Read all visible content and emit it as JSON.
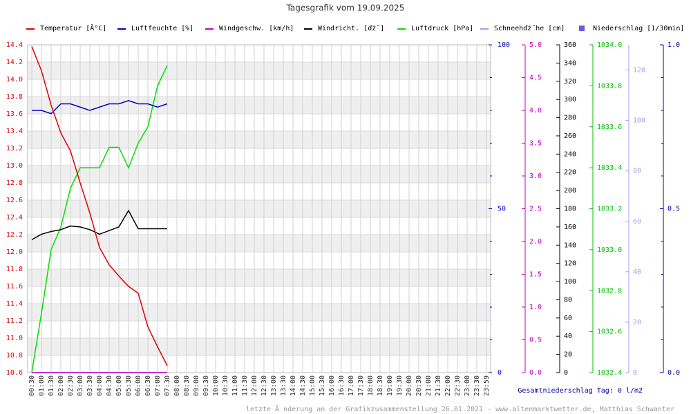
{
  "chart_data": {
    "type": "line",
    "title": "Tagesgrafik vom 19.09.2025",
    "categories": [
      "00:30",
      "01:00",
      "01:30",
      "02:00",
      "02:30",
      "03:00",
      "03:30",
      "04:00",
      "04:30",
      "05:00",
      "05:30",
      "06:00",
      "06:30",
      "07:00",
      "07:30",
      "08:00",
      "08:30",
      "09:00",
      "09:30",
      "10:00",
      "10:30",
      "11:00",
      "11:30",
      "12:00",
      "12:30",
      "13:00",
      "13:30",
      "14:00",
      "14:30",
      "15:00",
      "15:30",
      "16:00",
      "16:30",
      "17:00",
      "17:30",
      "18:00",
      "18:30",
      "19:00",
      "19:30",
      "20:00",
      "20:30",
      "21:00",
      "21:30",
      "22:00",
      "22:30",
      "23:00",
      "23:30",
      "23:59"
    ],
    "grid": true,
    "legend_position": "top",
    "axes": [
      {
        "color": "#e00000",
        "ylim": [
          10.6,
          14.4
        ],
        "yticks": [
          10.6,
          10.8,
          {
            "value": 11,
            "label": "11.0"
          },
          11.2,
          11.4,
          11.6,
          11.8,
          {
            "value": 12,
            "label": "12.0"
          },
          12.2,
          12.4,
          12.6,
          12.8,
          {
            "value": 13,
            "label": "13.0"
          },
          13.2,
          13.4,
          13.6,
          13.8,
          {
            "value": 14,
            "label": "14.0"
          },
          14.2,
          14.4
        ]
      },
      {
        "color": "#0000c0",
        "ylim": [
          0,
          100
        ],
        "yticks": [
          0,
          50,
          100
        ],
        "minor_ticks": [
          10,
          20,
          30,
          40,
          60,
          70,
          80,
          90
        ]
      },
      {
        "color": "#c000c0",
        "ylim": [
          0,
          5
        ],
        "yticks": [
          {
            "value": 0,
            "label": "0.0"
          },
          0.5,
          {
            "value": 1,
            "label": "1.0"
          },
          1.5,
          {
            "value": 2,
            "label": "2.0"
          },
          2.5,
          {
            "value": 3,
            "label": "3.0"
          },
          3.5,
          {
            "value": 4,
            "label": "4.0"
          },
          4.5,
          {
            "value": 5,
            "label": "5.0"
          }
        ]
      },
      {
        "color": "#000000",
        "ylim": [
          0,
          360
        ],
        "yticks": [
          0,
          20,
          40,
          60,
          80,
          100,
          120,
          140,
          160,
          180,
          200,
          220,
          240,
          260,
          280,
          300,
          320,
          340,
          360
        ]
      },
      {
        "color": "#00c000",
        "ylim": [
          1032.4,
          1034
        ],
        "yticks": [
          1032.4,
          1032.6,
          1032.8,
          {
            "value": 1033,
            "label": "1033.0"
          },
          1033.2,
          1033.4,
          1033.6,
          1033.8,
          {
            "value": 1034,
            "label": "1034.0"
          }
        ]
      },
      {
        "color": "#a0a0f0",
        "ylim": [
          0,
          130
        ],
        "yticks": [
          0,
          20,
          40,
          60,
          80,
          100,
          120
        ]
      },
      {
        "color": "#0000a0",
        "ylim": [
          0,
          1
        ],
        "yticks": [
          {
            "value": 0,
            "label": "0.0"
          },
          0.5,
          {
            "value": 1,
            "label": "1.0"
          }
        ],
        "minor_ticks": [
          0.1,
          0.2,
          0.3,
          0.4,
          0.6,
          0.7,
          0.8,
          0.9
        ]
      }
    ],
    "series": [
      {
        "name": "Temperatur [Â°C]",
        "color": "#e00000",
        "axis": 0,
        "values": [
          14.38,
          14.1,
          13.7,
          13.38,
          13.17,
          12.8,
          12.45,
          12.05,
          11.85,
          11.72,
          11.6,
          11.52,
          11.13,
          10.9,
          10.68,
          null,
          null,
          null,
          null,
          null,
          null,
          null,
          null,
          null,
          null,
          null,
          null,
          null,
          null,
          null,
          null,
          null,
          null,
          null,
          null,
          null,
          null,
          null,
          null,
          null,
          null,
          null,
          null,
          null,
          null,
          null,
          null,
          null
        ]
      },
      {
        "name": "Luftfeuchte [%]",
        "color": "#0000c0",
        "axis": 1,
        "values": [
          80,
          80,
          79,
          82,
          82,
          81,
          80,
          81,
          82,
          82,
          83,
          82,
          82,
          81,
          82,
          null,
          null,
          null,
          null,
          null,
          null,
          null,
          null,
          null,
          null,
          null,
          null,
          null,
          null,
          null,
          null,
          null,
          null,
          null,
          null,
          null,
          null,
          null,
          null,
          null,
          null,
          null,
          null,
          null,
          null,
          null,
          null,
          null
        ]
      },
      {
        "name": "Windgeschw. [km/h]",
        "color": "#c000c0",
        "axis": 2,
        "values": [
          0,
          0,
          0,
          0,
          0,
          0,
          0,
          0,
          0,
          0,
          0,
          0,
          0,
          0,
          0,
          null,
          null,
          null,
          null,
          null,
          null,
          null,
          null,
          null,
          null,
          null,
          null,
          null,
          null,
          null,
          null,
          null,
          null,
          null,
          null,
          null,
          null,
          null,
          null,
          null,
          null,
          null,
          null,
          null,
          null,
          null,
          null,
          null
        ]
      },
      {
        "name": "Windricht. [ďż˝]",
        "color": "#000000",
        "axis": 3,
        "values": [
          146,
          152,
          155,
          157,
          161,
          160,
          157,
          152,
          156,
          160,
          178,
          158,
          158,
          158,
          158,
          null,
          null,
          null,
          null,
          null,
          null,
          null,
          null,
          null,
          null,
          null,
          null,
          null,
          null,
          null,
          null,
          null,
          null,
          null,
          null,
          null,
          null,
          null,
          null,
          null,
          null,
          null,
          null,
          null,
          null,
          null,
          null,
          null
        ]
      },
      {
        "name": "Luftdruck [hPa]",
        "color": "#00e000",
        "axis": 4,
        "values": [
          1032.4,
          1032.69,
          1033.0,
          1033.11,
          1033.3,
          1033.4,
          1033.4,
          1033.4,
          1033.5,
          1033.5,
          1033.4,
          1033.52,
          1033.6,
          1033.8,
          1033.9,
          null,
          null,
          null,
          null,
          null,
          null,
          null,
          null,
          null,
          null,
          null,
          null,
          null,
          null,
          null,
          null,
          null,
          null,
          null,
          null,
          null,
          null,
          null,
          null,
          null,
          null,
          null,
          null,
          null,
          null,
          null,
          null,
          null
        ]
      },
      {
        "name": "Schneehďż˝he [cm]",
        "color": "#a0a0f0",
        "axis": 5,
        "values": [
          0,
          0,
          0,
          0,
          0,
          0,
          0,
          0,
          0,
          0,
          0,
          0,
          0,
          0,
          0,
          null,
          null,
          null,
          null,
          null,
          null,
          null,
          null,
          null,
          null,
          null,
          null,
          null,
          null,
          null,
          null,
          null,
          null,
          null,
          null,
          null,
          null,
          null,
          null,
          null,
          null,
          null,
          null,
          null,
          null,
          null,
          null,
          null
        ]
      },
      {
        "name": "Niederschlag [1/30min]",
        "color": "#6060e0",
        "axis": 6,
        "style": "bar",
        "values": [
          0,
          0,
          0,
          0,
          0,
          0,
          0,
          0,
          0,
          0,
          0,
          0,
          0,
          0,
          0,
          null,
          null,
          null,
          null,
          null,
          null,
          null,
          null,
          null,
          null,
          null,
          null,
          null,
          null,
          null,
          null,
          null,
          null,
          null,
          null,
          null,
          null,
          null,
          null,
          null,
          null,
          null,
          null,
          null,
          null,
          null,
          null,
          null
        ]
      }
    ],
    "total_precipitation": "Gesamtniederschlag Tag: 0 l/m2",
    "footer": "letzte Ă nderung an der Grafikzusammenstellung 26.01.2021 - www.altenmarktwetter.de, Matthias Schwanter"
  }
}
